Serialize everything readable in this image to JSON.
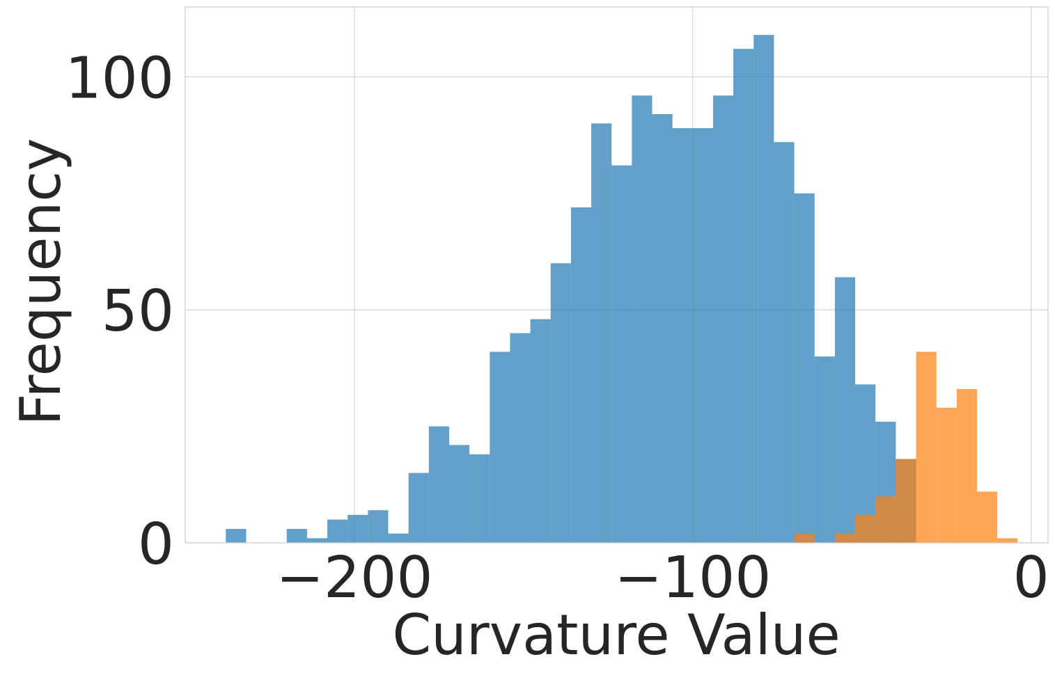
{
  "chart_data": {
    "type": "bar",
    "title": "",
    "xlabel": "Curvature Value",
    "ylabel": "Frequency",
    "xlim": [
      -250,
      5
    ],
    "ylim": [
      0,
      115
    ],
    "xticks": [
      -200,
      -100,
      0
    ],
    "xtick_labels": [
      "−200",
      "−100",
      "0"
    ],
    "yticks": [
      0,
      50,
      100
    ],
    "ytick_labels": [
      "0",
      "50",
      "100"
    ],
    "grid": true,
    "legend": "none",
    "series": [
      {
        "color": "#1f77b4",
        "opacity": 0.7,
        "bins": [
          {
            "x0": -238,
            "x1": -232,
            "count": 3
          },
          {
            "x0": -220,
            "x1": -214,
            "count": 3
          },
          {
            "x0": -214,
            "x1": -208,
            "count": 1
          },
          {
            "x0": -208,
            "x1": -202,
            "count": 5
          },
          {
            "x0": -202,
            "x1": -196,
            "count": 6
          },
          {
            "x0": -196,
            "x1": -190,
            "count": 7
          },
          {
            "x0": -190,
            "x1": -184,
            "count": 2
          },
          {
            "x0": -184,
            "x1": -178,
            "count": 15
          },
          {
            "x0": -178,
            "x1": -172,
            "count": 25
          },
          {
            "x0": -172,
            "x1": -166,
            "count": 21
          },
          {
            "x0": -166,
            "x1": -160,
            "count": 19
          },
          {
            "x0": -160,
            "x1": -154,
            "count": 41
          },
          {
            "x0": -154,
            "x1": -148,
            "count": 45
          },
          {
            "x0": -148,
            "x1": -142,
            "count": 48
          },
          {
            "x0": -142,
            "x1": -136,
            "count": 60
          },
          {
            "x0": -136,
            "x1": -130,
            "count": 72
          },
          {
            "x0": -130,
            "x1": -124,
            "count": 90
          },
          {
            "x0": -124,
            "x1": -118,
            "count": 81
          },
          {
            "x0": -118,
            "x1": -112,
            "count": 96
          },
          {
            "x0": -112,
            "x1": -106,
            "count": 92
          },
          {
            "x0": -106,
            "x1": -100,
            "count": 89
          },
          {
            "x0": -100,
            "x1": -94,
            "count": 89
          },
          {
            "x0": -94,
            "x1": -88,
            "count": 96
          },
          {
            "x0": -88,
            "x1": -82,
            "count": 106
          },
          {
            "x0": -82,
            "x1": -76,
            "count": 109
          },
          {
            "x0": -76,
            "x1": -70,
            "count": 86
          },
          {
            "x0": -70,
            "x1": -64,
            "count": 75
          },
          {
            "x0": -64,
            "x1": -58,
            "count": 40
          },
          {
            "x0": -58,
            "x1": -52,
            "count": 57
          },
          {
            "x0": -52,
            "x1": -46,
            "count": 34
          },
          {
            "x0": -46,
            "x1": -40,
            "count": 26
          },
          {
            "x0": -40,
            "x1": -34,
            "count": 18
          }
        ]
      },
      {
        "color": "#ff7f0e",
        "opacity": 0.7,
        "bins": [
          {
            "x0": -70,
            "x1": -64,
            "count": 2
          },
          {
            "x0": -58,
            "x1": -52,
            "count": 2
          },
          {
            "x0": -52,
            "x1": -46,
            "count": 6
          },
          {
            "x0": -46,
            "x1": -40,
            "count": 10
          },
          {
            "x0": -40,
            "x1": -34,
            "count": 18
          },
          {
            "x0": -34,
            "x1": -28,
            "count": 41
          },
          {
            "x0": -28,
            "x1": -22,
            "count": 29
          },
          {
            "x0": -22,
            "x1": -16,
            "count": 33
          },
          {
            "x0": -16,
            "x1": -10,
            "count": 11
          },
          {
            "x0": -10,
            "x1": -4,
            "count": 1
          }
        ]
      }
    ]
  }
}
